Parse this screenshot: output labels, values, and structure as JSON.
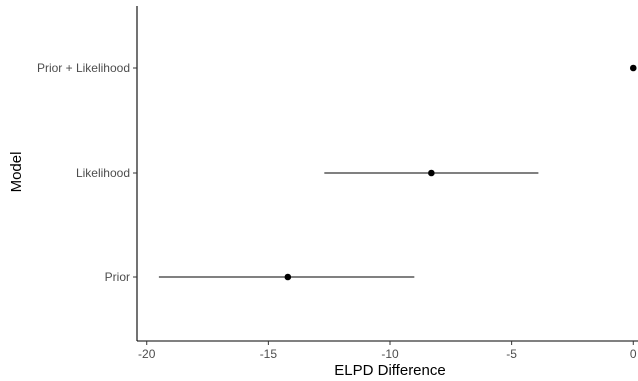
{
  "chart_data": {
    "type": "scatter",
    "subtype": "point-range",
    "title": "",
    "xlabel": "ELPD Difference",
    "ylabel": "Model",
    "xlim": [
      -20.4,
      0.4
    ],
    "xticks": [
      -20,
      -15,
      -10,
      -5,
      0
    ],
    "xtick_labels": [
      "-20",
      "-15",
      "-10",
      "-5",
      "0"
    ],
    "categories": [
      "Prior + Likelihood",
      "Likelihood",
      "Prior"
    ],
    "points": [
      {
        "model": "Prior + Likelihood",
        "elpd_diff": 0.0,
        "lower": 0.0,
        "upper": 0.0
      },
      {
        "model": "Likelihood",
        "elpd_diff": -8.3,
        "lower": -12.7,
        "upper": -3.9
      },
      {
        "model": "Prior",
        "elpd_diff": -14.2,
        "lower": -19.5,
        "upper": -9.0
      }
    ],
    "grid": false,
    "legend": "none",
    "colors": {
      "point": "#000000",
      "line": "#000000",
      "axis": "#000000",
      "tick_text": "#4d4d4d"
    }
  }
}
